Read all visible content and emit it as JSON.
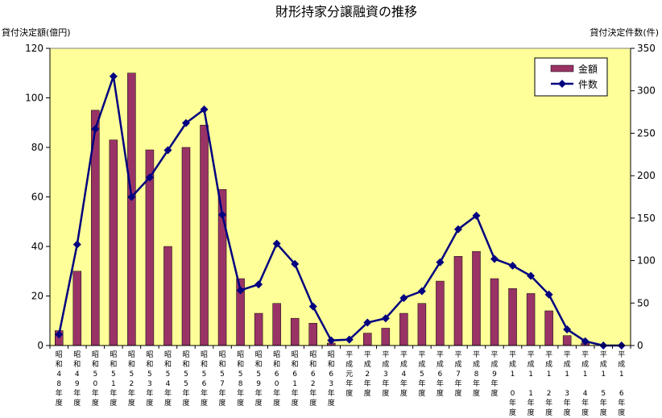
{
  "chart_data": {
    "type": "bar+line",
    "title": "財形持家分譲融資の推移",
    "left_axis_label": "貸付決定額(億円)",
    "right_axis_label": "貸付決定件数(件)",
    "left_ylim": [
      0,
      120
    ],
    "left_ticks": [
      0,
      20,
      40,
      60,
      80,
      100,
      120
    ],
    "right_ylim": [
      0,
      350
    ],
    "right_ticks": [
      0,
      50,
      100,
      150,
      200,
      250,
      300,
      350
    ],
    "categories": [
      "昭和48年度",
      "昭和49年度",
      "昭和50年度",
      "昭和51年度",
      "昭和52年度",
      "昭和53年度",
      "昭和54年度",
      "昭和55年度",
      "昭和56年度",
      "昭和57年度",
      "昭和58年度",
      "昭和59年度",
      "昭和60年度",
      "昭和61年度",
      "昭和62年度",
      "昭和63年度",
      "平成元年度",
      "平成2年度",
      "平成3年度",
      "平成4年度",
      "平成5年度",
      "平成6年度",
      "平成7年度",
      "平成8年度",
      "平成9年度",
      "平成10年度",
      "平成11年度",
      "平成12年度",
      "平成13年度",
      "平成14年度",
      "平成15年度",
      "平成16年度"
    ],
    "category_labels_vertical": [
      "昭和48年度",
      "昭和49年度",
      "昭和50年度",
      "昭和51年度",
      "昭和52年度",
      "昭和53年度",
      "昭和54年度",
      "昭和55年度",
      "昭和56年度",
      "昭和57年度",
      "昭和58年度",
      "昭和59年度",
      "昭和60年度",
      "昭和61年度",
      "昭和62年度",
      "昭和63年度",
      "平成元年度",
      "平成2年度",
      "平成3年度",
      "平成4年度",
      "平成5年度",
      "平成6年度",
      "平成7年度",
      "平成8年度",
      "平成9年度",
      "平成1 0年度",
      "平成1 1年度",
      "平成1 2年度",
      "平成1 3年度",
      "平成1 4年度",
      "平成1 5年度",
      "平成1 6年度"
    ],
    "series": [
      {
        "name": "金額",
        "kind": "bar",
        "axis": "left",
        "color": "#993366",
        "values": [
          6,
          30,
          95,
          83,
          110,
          79,
          40,
          80,
          89,
          63,
          27,
          13,
          17,
          11,
          9,
          1,
          0,
          5,
          7,
          13,
          17,
          26,
          36,
          38,
          27,
          23,
          21,
          14,
          4,
          1,
          0,
          0
        ]
      },
      {
        "name": "件数",
        "kind": "line",
        "axis": "right",
        "color": "#000080",
        "values": [
          13,
          119,
          255,
          317,
          175,
          198,
          230,
          262,
          278,
          154,
          65,
          72,
          120,
          96,
          46,
          6,
          7,
          27,
          32,
          56,
          64,
          98,
          137,
          153,
          102,
          94,
          82,
          60,
          19,
          5,
          0,
          0
        ]
      }
    ],
    "legend_position": "top-right",
    "plot_background": "#ffff99",
    "grid": false
  }
}
